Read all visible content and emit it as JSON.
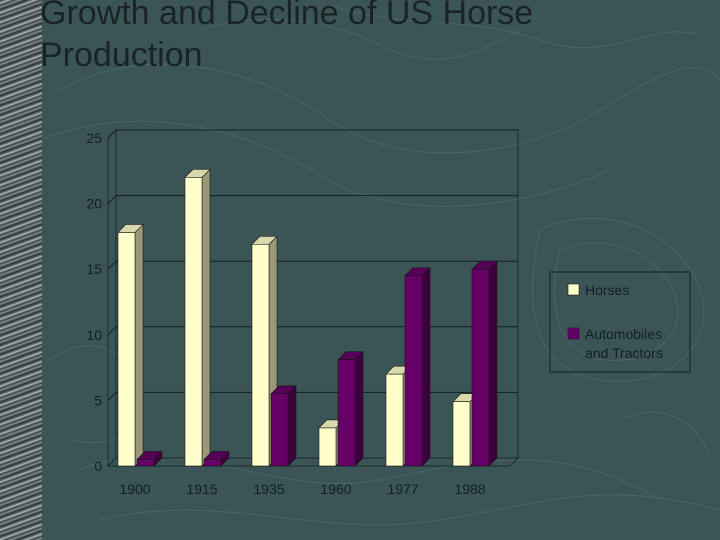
{
  "slide": {
    "title": "Growth and Decline of US Horse Production"
  },
  "colors": {
    "background": "#3b5556",
    "horses": "#ffffcc",
    "automobiles": "#660066"
  },
  "chart_data": {
    "type": "bar",
    "title": "Growth and Decline of US Horse Production",
    "categories": [
      "1900",
      "1915",
      "1935",
      "1960",
      "1977",
      "1988"
    ],
    "series": [
      {
        "name": "Horses",
        "values": [
          17.8,
          22.0,
          16.9,
          2.9,
          7.0,
          4.9
        ]
      },
      {
        "name": "Automobiles and Tractors",
        "values": [
          0.5,
          0.5,
          5.5,
          8.1,
          14.5,
          15.0
        ]
      }
    ],
    "ylim": [
      0,
      25
    ],
    "yticks": [
      "0",
      "5",
      "10",
      "15",
      "20",
      "25"
    ],
    "grid": true,
    "legend_position": "right",
    "legend": [
      "Horses",
      "Automobiles and Tractors"
    ]
  }
}
